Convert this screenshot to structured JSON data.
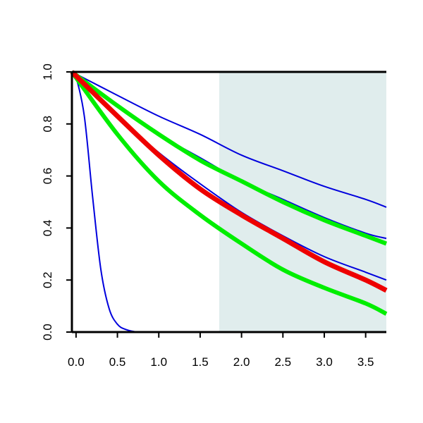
{
  "chart_data": {
    "type": "line",
    "title": "",
    "xlabel": "",
    "ylabel": "",
    "xlim": [
      -0.05,
      3.75
    ],
    "ylim": [
      0.0,
      1.0
    ],
    "x_ticks": [
      0.0,
      0.5,
      1.0,
      1.5,
      2.0,
      2.5,
      3.0,
      3.5
    ],
    "x_tick_labels": [
      "0.0",
      "0.5",
      "1.0",
      "1.5",
      "2.0",
      "2.5",
      "3.0",
      "3.5"
    ],
    "y_ticks": [
      0.0,
      0.2,
      0.4,
      0.6,
      0.8,
      1.0
    ],
    "y_tick_labels": [
      "0.0",
      "0.2",
      "0.4",
      "0.6",
      "0.8",
      "1.0"
    ],
    "grid": false,
    "shaded_region": {
      "x_start": 1.73,
      "x_end": 3.75,
      "color": "#e0eded"
    },
    "series": [
      {
        "color": "#0000dd",
        "width": 2,
        "x": [
          -0.05,
          0.0,
          0.1,
          0.2,
          0.3,
          0.4,
          0.5,
          0.6,
          0.75,
          1.0,
          3.75
        ],
        "values": [
          1.0,
          0.98,
          0.83,
          0.52,
          0.24,
          0.09,
          0.03,
          0.01,
          0.0,
          0.0,
          0.0
        ]
      },
      {
        "color": "#0000dd",
        "width": 2,
        "x": [
          -0.05,
          0.5,
          1.0,
          1.5,
          2.0,
          2.5,
          3.0,
          3.5,
          3.75
        ],
        "values": [
          1.0,
          0.91,
          0.83,
          0.76,
          0.68,
          0.62,
          0.56,
          0.51,
          0.48
        ]
      },
      {
        "color": "#0000dd",
        "width": 2,
        "x": [
          -0.05,
          0.5,
          1.0,
          1.5,
          2.0,
          2.5,
          3.0,
          3.5,
          3.75
        ],
        "values": [
          1.0,
          0.87,
          0.76,
          0.67,
          0.58,
          0.51,
          0.44,
          0.38,
          0.36
        ]
      },
      {
        "color": "#0000dd",
        "width": 2,
        "x": [
          -0.05,
          0.5,
          1.0,
          1.5,
          2.0,
          2.5,
          3.0,
          3.5,
          3.75
        ],
        "values": [
          1.0,
          0.83,
          0.69,
          0.57,
          0.46,
          0.37,
          0.29,
          0.23,
          0.2
        ]
      },
      {
        "color": "#00ee00",
        "width": 6,
        "x": [
          -0.05,
          0.5,
          1.0,
          1.5,
          2.0,
          2.5,
          3.0,
          3.5,
          3.75
        ],
        "values": [
          1.0,
          0.87,
          0.76,
          0.66,
          0.58,
          0.5,
          0.43,
          0.37,
          0.34
        ]
      },
      {
        "color": "#00ee00",
        "width": 6,
        "x": [
          -0.05,
          0.5,
          1.0,
          1.5,
          2.0,
          2.5,
          3.0,
          3.5,
          3.75
        ],
        "values": [
          1.0,
          0.76,
          0.58,
          0.45,
          0.34,
          0.24,
          0.17,
          0.11,
          0.07
        ]
      },
      {
        "color": "#ee0000",
        "width": 7,
        "x": [
          -0.05,
          0.5,
          1.0,
          1.5,
          2.0,
          2.5,
          3.0,
          3.5,
          3.75
        ],
        "values": [
          1.0,
          0.83,
          0.68,
          0.55,
          0.45,
          0.36,
          0.27,
          0.2,
          0.16
        ]
      }
    ]
  }
}
